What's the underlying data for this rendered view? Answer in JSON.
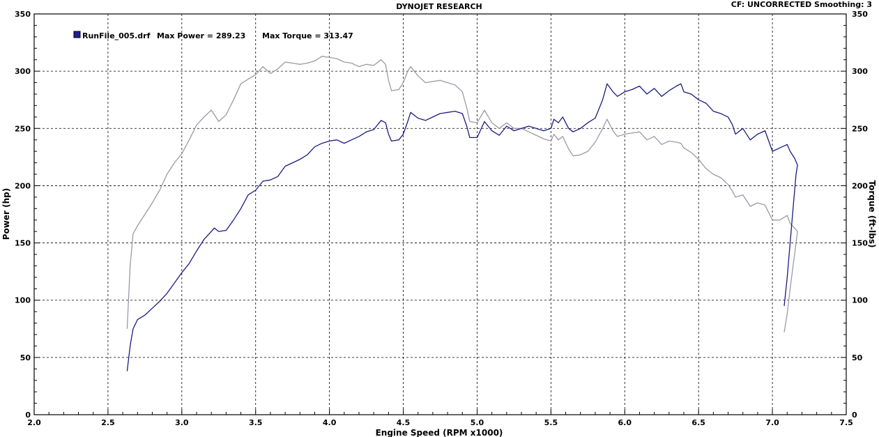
{
  "header": {
    "title": "DYNOJET RESEARCH",
    "status": "CF: UNCORRECTED  Smoothing: 3"
  },
  "legend": {
    "file": "RunFile_005.drf",
    "power_text": "Max Power = 289.23",
    "torque_text": "Max Torque = 313.47",
    "swatch_color": "#1f1f8f"
  },
  "chart_data": {
    "type": "line",
    "title": "DYNOJET RESEARCH",
    "xlabel": "Engine Speed (RPM x1000)",
    "ylabel": "Power (hp)",
    "y2label": "Torque (ft-lbs)",
    "xlim": [
      2.0,
      7.5
    ],
    "ylim": [
      0,
      350
    ],
    "y2lim": [
      0,
      350
    ],
    "x_ticks": [
      "2.0",
      "2.5",
      "3.0",
      "3.5",
      "4.0",
      "4.5",
      "5.0",
      "5.5",
      "6.0",
      "6.5",
      "7.0",
      "7.5"
    ],
    "y_ticks": [
      "0",
      "50",
      "100",
      "150",
      "200",
      "250",
      "300",
      "350"
    ],
    "y2_ticks": [
      "0",
      "50",
      "100",
      "150",
      "200",
      "250",
      "300",
      "350"
    ],
    "grid": true,
    "legend_position": "top-left",
    "series": [
      {
        "name": "Power",
        "axis": "left",
        "color": "#1a1a80",
        "points": [
          [
            2.63,
            38
          ],
          [
            2.65,
            60
          ],
          [
            2.67,
            75
          ],
          [
            2.7,
            83
          ],
          [
            2.75,
            87
          ],
          [
            2.8,
            93
          ],
          [
            2.85,
            99
          ],
          [
            2.9,
            106
          ],
          [
            2.95,
            115
          ],
          [
            3.0,
            124
          ],
          [
            3.05,
            132
          ],
          [
            3.1,
            143
          ],
          [
            3.15,
            153
          ],
          [
            3.2,
            160
          ],
          [
            3.22,
            163
          ],
          [
            3.25,
            160
          ],
          [
            3.3,
            161
          ],
          [
            3.35,
            170
          ],
          [
            3.4,
            180
          ],
          [
            3.45,
            192
          ],
          [
            3.5,
            196
          ],
          [
            3.55,
            204
          ],
          [
            3.6,
            205
          ],
          [
            3.65,
            208
          ],
          [
            3.7,
            217
          ],
          [
            3.75,
            220
          ],
          [
            3.8,
            223
          ],
          [
            3.85,
            227
          ],
          [
            3.9,
            234
          ],
          [
            3.95,
            237
          ],
          [
            4.0,
            239
          ],
          [
            4.05,
            240
          ],
          [
            4.1,
            237
          ],
          [
            4.15,
            240
          ],
          [
            4.2,
            243
          ],
          [
            4.25,
            247
          ],
          [
            4.3,
            249
          ],
          [
            4.35,
            257
          ],
          [
            4.38,
            255
          ],
          [
            4.4,
            245
          ],
          [
            4.42,
            239
          ],
          [
            4.47,
            240
          ],
          [
            4.5,
            245
          ],
          [
            4.53,
            256
          ],
          [
            4.55,
            264
          ],
          [
            4.6,
            259
          ],
          [
            4.65,
            257
          ],
          [
            4.7,
            260
          ],
          [
            4.75,
            263
          ],
          [
            4.8,
            264
          ],
          [
            4.85,
            265
          ],
          [
            4.9,
            263
          ],
          [
            4.93,
            252
          ],
          [
            4.95,
            242
          ],
          [
            5.0,
            242
          ],
          [
            5.05,
            256
          ],
          [
            5.1,
            248
          ],
          [
            5.15,
            244
          ],
          [
            5.2,
            252
          ],
          [
            5.25,
            248
          ],
          [
            5.3,
            250
          ],
          [
            5.35,
            252
          ],
          [
            5.4,
            250
          ],
          [
            5.45,
            248
          ],
          [
            5.5,
            250
          ],
          [
            5.52,
            258
          ],
          [
            5.55,
            255
          ],
          [
            5.58,
            260
          ],
          [
            5.62,
            250
          ],
          [
            5.65,
            247
          ],
          [
            5.7,
            250
          ],
          [
            5.75,
            255
          ],
          [
            5.8,
            259
          ],
          [
            5.85,
            275
          ],
          [
            5.88,
            289
          ],
          [
            5.92,
            282
          ],
          [
            5.95,
            278
          ],
          [
            6.0,
            282
          ],
          [
            6.05,
            284
          ],
          [
            6.1,
            287
          ],
          [
            6.15,
            280
          ],
          [
            6.2,
            285
          ],
          [
            6.25,
            278
          ],
          [
            6.3,
            283
          ],
          [
            6.35,
            287
          ],
          [
            6.38,
            289
          ],
          [
            6.4,
            282
          ],
          [
            6.45,
            280
          ],
          [
            6.5,
            275
          ],
          [
            6.55,
            272
          ],
          [
            6.6,
            265
          ],
          [
            6.65,
            263
          ],
          [
            6.7,
            260
          ],
          [
            6.73,
            253
          ],
          [
            6.75,
            245
          ],
          [
            6.8,
            250
          ],
          [
            6.85,
            240
          ],
          [
            6.9,
            245
          ],
          [
            6.95,
            248
          ],
          [
            7.0,
            230
          ],
          [
            7.05,
            233
          ],
          [
            7.1,
            236
          ],
          [
            7.12,
            230
          ],
          [
            7.15,
            224
          ],
          [
            7.17,
            218
          ],
          [
            7.16,
            210
          ],
          [
            7.14,
            180
          ],
          [
            7.12,
            150
          ],
          [
            7.1,
            120
          ],
          [
            7.08,
            95
          ]
        ]
      },
      {
        "name": "Torque",
        "axis": "right",
        "color": "#9a9aa6",
        "points": [
          [
            2.63,
            75
          ],
          [
            2.65,
            130
          ],
          [
            2.67,
            158
          ],
          [
            2.7,
            165
          ],
          [
            2.75,
            175
          ],
          [
            2.8,
            185
          ],
          [
            2.85,
            196
          ],
          [
            2.9,
            210
          ],
          [
            2.95,
            220
          ],
          [
            3.0,
            228
          ],
          [
            3.05,
            240
          ],
          [
            3.1,
            253
          ],
          [
            3.15,
            260
          ],
          [
            3.2,
            266
          ],
          [
            3.25,
            256
          ],
          [
            3.3,
            262
          ],
          [
            3.35,
            275
          ],
          [
            3.4,
            289
          ],
          [
            3.45,
            293
          ],
          [
            3.5,
            297
          ],
          [
            3.55,
            304
          ],
          [
            3.6,
            298
          ],
          [
            3.65,
            302
          ],
          [
            3.7,
            308
          ],
          [
            3.75,
            307
          ],
          [
            3.8,
            306
          ],
          [
            3.85,
            307
          ],
          [
            3.9,
            309
          ],
          [
            3.95,
            313
          ],
          [
            4.0,
            312
          ],
          [
            4.05,
            311
          ],
          [
            4.1,
            308
          ],
          [
            4.15,
            307
          ],
          [
            4.2,
            304
          ],
          [
            4.25,
            306
          ],
          [
            4.3,
            305
          ],
          [
            4.35,
            310
          ],
          [
            4.38,
            306
          ],
          [
            4.4,
            292
          ],
          [
            4.42,
            283
          ],
          [
            4.47,
            284
          ],
          [
            4.5,
            290
          ],
          [
            4.53,
            300
          ],
          [
            4.55,
            304
          ],
          [
            4.6,
            296
          ],
          [
            4.65,
            290
          ],
          [
            4.7,
            291
          ],
          [
            4.75,
            292
          ],
          [
            4.8,
            290
          ],
          [
            4.85,
            288
          ],
          [
            4.9,
            282
          ],
          [
            4.93,
            268
          ],
          [
            4.95,
            256
          ],
          [
            5.0,
            255
          ],
          [
            5.05,
            266
          ],
          [
            5.1,
            255
          ],
          [
            5.15,
            250
          ],
          [
            5.2,
            255
          ],
          [
            5.25,
            250
          ],
          [
            5.3,
            250
          ],
          [
            5.35,
            247
          ],
          [
            5.4,
            244
          ],
          [
            5.45,
            241
          ],
          [
            5.5,
            239
          ],
          [
            5.52,
            245
          ],
          [
            5.55,
            240
          ],
          [
            5.58,
            243
          ],
          [
            5.62,
            232
          ],
          [
            5.65,
            226
          ],
          [
            5.7,
            227
          ],
          [
            5.75,
            230
          ],
          [
            5.8,
            238
          ],
          [
            5.85,
            250
          ],
          [
            5.88,
            258
          ],
          [
            5.92,
            248
          ],
          [
            5.95,
            243
          ],
          [
            6.0,
            245
          ],
          [
            6.05,
            246
          ],
          [
            6.1,
            247
          ],
          [
            6.15,
            240
          ],
          [
            6.2,
            243
          ],
          [
            6.25,
            236
          ],
          [
            6.3,
            239
          ],
          [
            6.35,
            238
          ],
          [
            6.38,
            237
          ],
          [
            6.4,
            233
          ],
          [
            6.45,
            229
          ],
          [
            6.5,
            223
          ],
          [
            6.55,
            215
          ],
          [
            6.6,
            210
          ],
          [
            6.65,
            207
          ],
          [
            6.7,
            201
          ],
          [
            6.73,
            195
          ],
          [
            6.75,
            190
          ],
          [
            6.8,
            192
          ],
          [
            6.85,
            182
          ],
          [
            6.9,
            185
          ],
          [
            6.95,
            183
          ],
          [
            7.0,
            170
          ],
          [
            7.05,
            170
          ],
          [
            7.1,
            174
          ],
          [
            7.12,
            167
          ],
          [
            7.15,
            163
          ],
          [
            7.17,
            160
          ],
          [
            7.16,
            150
          ],
          [
            7.14,
            130
          ],
          [
            7.12,
            110
          ],
          [
            7.1,
            88
          ],
          [
            7.08,
            72
          ]
        ]
      }
    ]
  },
  "colors": {
    "frame": "#000000",
    "grid": "#000000",
    "background": "#ffffff"
  }
}
